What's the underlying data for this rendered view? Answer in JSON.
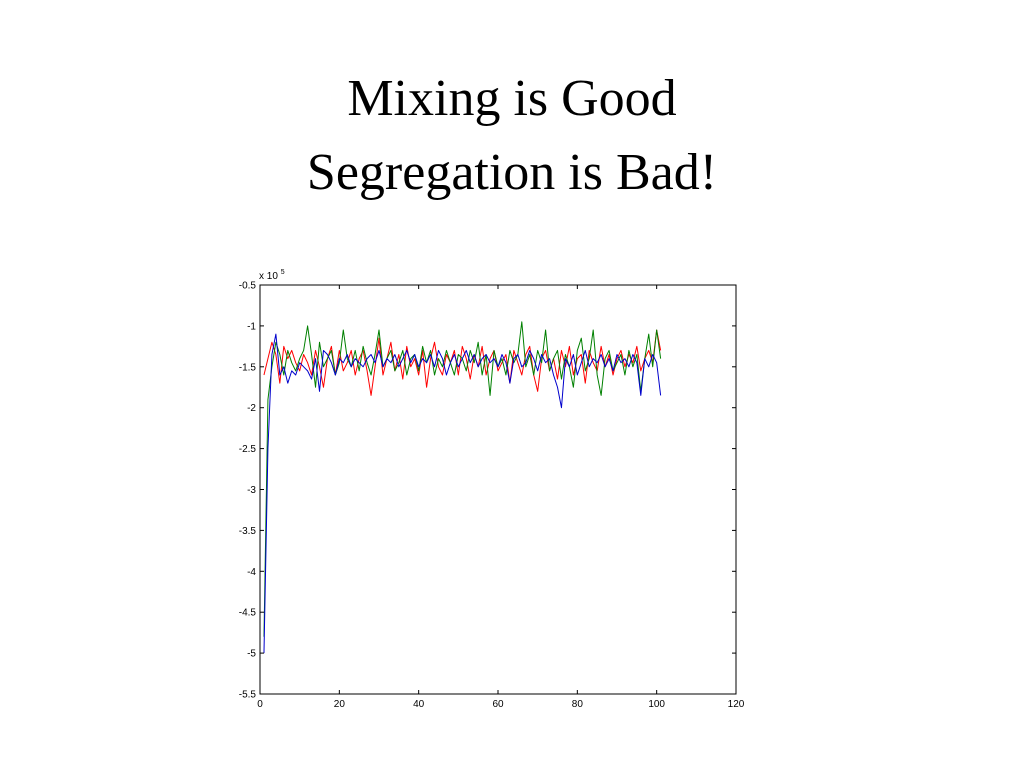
{
  "title": {
    "line1": "Mixing is Good",
    "line2": "Segregation is Bad!"
  },
  "chart_data": {
    "type": "line",
    "title": "",
    "xlabel": "",
    "ylabel": "",
    "y_multiplier_label": "x 10",
    "y_multiplier_exponent": "5",
    "xlim": [
      0,
      120
    ],
    "ylim": [
      -5.5,
      -0.5
    ],
    "xticks": [
      0,
      20,
      40,
      60,
      80,
      100,
      120
    ],
    "yticks": [
      -5.5,
      -5,
      -4.5,
      -4,
      -3.5,
      -3,
      -2.5,
      -2,
      -1.5,
      -1,
      -0.5
    ],
    "xtick_labels": [
      "0",
      "20",
      "40",
      "60",
      "80",
      "100",
      "120"
    ],
    "ytick_labels": [
      "-5.5",
      "-5",
      "-4.5",
      "-4",
      "-3.5",
      "-3",
      "-2.5",
      "-2",
      "-1.5",
      "-1",
      "-0.5"
    ],
    "grid": false,
    "series": [
      {
        "color": "#ff0000",
        "x": [
          1,
          2,
          3,
          4,
          5,
          6,
          7,
          8,
          9,
          10,
          11,
          12,
          13,
          14,
          15,
          16,
          17,
          18,
          19,
          20,
          21,
          22,
          23,
          24,
          25,
          26,
          27,
          28,
          29,
          30,
          31,
          32,
          33,
          34,
          35,
          36,
          37,
          38,
          39,
          40,
          41,
          42,
          43,
          44,
          45,
          46,
          47,
          48,
          49,
          50,
          51,
          52,
          53,
          54,
          55,
          56,
          57,
          58,
          59,
          60,
          61,
          62,
          63,
          64,
          65,
          66,
          67,
          68,
          69,
          70,
          71,
          72,
          73,
          74,
          75,
          76,
          77,
          78,
          79,
          80,
          81,
          82,
          83,
          84,
          85,
          86,
          87,
          88,
          89,
          90,
          91,
          92,
          93,
          94,
          95,
          96,
          97,
          98,
          99,
          100,
          101
        ],
        "y": [
          -1.6,
          -1.4,
          -1.2,
          -1.35,
          -1.7,
          -1.25,
          -1.4,
          -1.3,
          -1.45,
          -1.55,
          -1.35,
          -1.45,
          -1.6,
          -1.3,
          -1.5,
          -1.75,
          -1.4,
          -1.25,
          -1.6,
          -1.3,
          -1.55,
          -1.45,
          -1.3,
          -1.6,
          -1.4,
          -1.3,
          -1.55,
          -1.85,
          -1.5,
          -1.15,
          -1.6,
          -1.4,
          -1.2,
          -1.55,
          -1.35,
          -1.65,
          -1.25,
          -1.5,
          -1.4,
          -1.6,
          -1.3,
          -1.75,
          -1.4,
          -1.2,
          -1.5,
          -1.6,
          -1.35,
          -1.45,
          -1.3,
          -1.6,
          -1.25,
          -1.4,
          -1.65,
          -1.35,
          -1.5,
          -1.25,
          -1.6,
          -1.4,
          -1.3,
          -1.55,
          -1.45,
          -1.35,
          -1.7,
          -1.3,
          -1.45,
          -1.6,
          -1.35,
          -1.25,
          -1.6,
          -1.8,
          -1.4,
          -1.3,
          -1.55,
          -1.4,
          -1.65,
          -1.3,
          -1.5,
          -1.25,
          -1.6,
          -1.4,
          -1.35,
          -1.7,
          -1.3,
          -1.45,
          -1.55,
          -1.25,
          -1.5,
          -1.35,
          -1.6,
          -1.4,
          -1.3,
          -1.5,
          -1.35,
          -1.45,
          -1.25,
          -1.55,
          -1.4,
          -1.3,
          -1.45,
          -1.05,
          -1.3
        ]
      },
      {
        "color": "#008000",
        "x": [
          1,
          2,
          3,
          4,
          5,
          6,
          7,
          8,
          9,
          10,
          11,
          12,
          13,
          14,
          15,
          16,
          17,
          18,
          19,
          20,
          21,
          22,
          23,
          24,
          25,
          26,
          27,
          28,
          29,
          30,
          31,
          32,
          33,
          34,
          35,
          36,
          37,
          38,
          39,
          40,
          41,
          42,
          43,
          44,
          45,
          46,
          47,
          48,
          49,
          50,
          51,
          52,
          53,
          54,
          55,
          56,
          57,
          58,
          59,
          60,
          61,
          62,
          63,
          64,
          65,
          66,
          67,
          68,
          69,
          70,
          71,
          72,
          73,
          74,
          75,
          76,
          77,
          78,
          79,
          80,
          81,
          82,
          83,
          84,
          85,
          86,
          87,
          88,
          89,
          90,
          91,
          92,
          93,
          94,
          95,
          96,
          97,
          98,
          99,
          100,
          101
        ],
        "y": [
          -4.8,
          -1.9,
          -1.5,
          -1.2,
          -1.35,
          -1.6,
          -1.3,
          -1.45,
          -1.55,
          -1.4,
          -1.3,
          -1.0,
          -1.35,
          -1.75,
          -1.2,
          -1.5,
          -1.4,
          -1.3,
          -1.6,
          -1.45,
          -1.05,
          -1.4,
          -1.5,
          -1.3,
          -1.55,
          -1.25,
          -1.45,
          -1.6,
          -1.35,
          -1.05,
          -1.5,
          -1.4,
          -1.3,
          -1.55,
          -1.45,
          -1.3,
          -1.6,
          -1.4,
          -1.35,
          -1.55,
          -1.25,
          -1.45,
          -1.3,
          -1.6,
          -1.4,
          -1.5,
          -1.3,
          -1.45,
          -1.6,
          -1.35,
          -1.4,
          -1.55,
          -1.3,
          -1.45,
          -1.2,
          -1.6,
          -1.35,
          -1.85,
          -1.3,
          -1.5,
          -1.4,
          -1.6,
          -1.3,
          -1.45,
          -1.35,
          -0.95,
          -1.5,
          -1.35,
          -1.6,
          -1.3,
          -1.45,
          -1.05,
          -1.55,
          -1.4,
          -1.3,
          -1.65,
          -1.35,
          -1.5,
          -1.75,
          -1.3,
          -1.15,
          -1.55,
          -1.4,
          -1.05,
          -1.6,
          -1.85,
          -1.4,
          -1.3,
          -1.55,
          -1.45,
          -1.35,
          -1.6,
          -1.3,
          -1.5,
          -1.35,
          -1.8,
          -1.4,
          -1.1,
          -1.5,
          -1.05,
          -1.4
        ]
      },
      {
        "color": "#0000cc",
        "x": [
          1,
          2,
          3,
          4,
          5,
          6,
          7,
          8,
          9,
          10,
          11,
          12,
          13,
          14,
          15,
          16,
          17,
          18,
          19,
          20,
          21,
          22,
          23,
          24,
          25,
          26,
          27,
          28,
          29,
          30,
          31,
          32,
          33,
          34,
          35,
          36,
          37,
          38,
          39,
          40,
          41,
          42,
          43,
          44,
          45,
          46,
          47,
          48,
          49,
          50,
          51,
          52,
          53,
          54,
          55,
          56,
          57,
          58,
          59,
          60,
          61,
          62,
          63,
          64,
          65,
          66,
          67,
          68,
          69,
          70,
          71,
          72,
          73,
          74,
          75,
          76,
          77,
          78,
          79,
          80,
          81,
          82,
          83,
          84,
          85,
          86,
          87,
          88,
          89,
          90,
          91,
          92,
          93,
          94,
          95,
          96,
          97,
          98,
          99,
          100,
          101
        ],
        "y": [
          -5.0,
          -2.5,
          -1.35,
          -1.1,
          -1.6,
          -1.5,
          -1.7,
          -1.55,
          -1.6,
          -1.45,
          -1.5,
          -1.55,
          -1.65,
          -1.4,
          -1.8,
          -1.3,
          -1.35,
          -1.45,
          -1.6,
          -1.4,
          -1.45,
          -1.35,
          -1.5,
          -1.4,
          -1.45,
          -1.5,
          -1.4,
          -1.35,
          -1.45,
          -1.3,
          -1.5,
          -1.4,
          -1.45,
          -1.35,
          -1.5,
          -1.4,
          -1.3,
          -1.45,
          -1.35,
          -1.5,
          -1.4,
          -1.45,
          -1.35,
          -1.5,
          -1.3,
          -1.4,
          -1.6,
          -1.45,
          -1.35,
          -1.5,
          -1.4,
          -1.3,
          -1.45,
          -1.35,
          -1.5,
          -1.4,
          -1.35,
          -1.45,
          -1.4,
          -1.5,
          -1.35,
          -1.45,
          -1.7,
          -1.4,
          -1.35,
          -1.5,
          -1.45,
          -1.3,
          -1.4,
          -1.55,
          -1.35,
          -1.45,
          -1.4,
          -1.6,
          -1.75,
          -2.0,
          -1.4,
          -1.5,
          -1.35,
          -1.6,
          -1.45,
          -1.3,
          -1.5,
          -1.4,
          -1.45,
          -1.35,
          -1.5,
          -1.4,
          -1.55,
          -1.35,
          -1.45,
          -1.4,
          -1.5,
          -1.35,
          -1.45,
          -1.85,
          -1.4,
          -1.5,
          -1.35,
          -1.45,
          -1.85
        ]
      }
    ]
  }
}
